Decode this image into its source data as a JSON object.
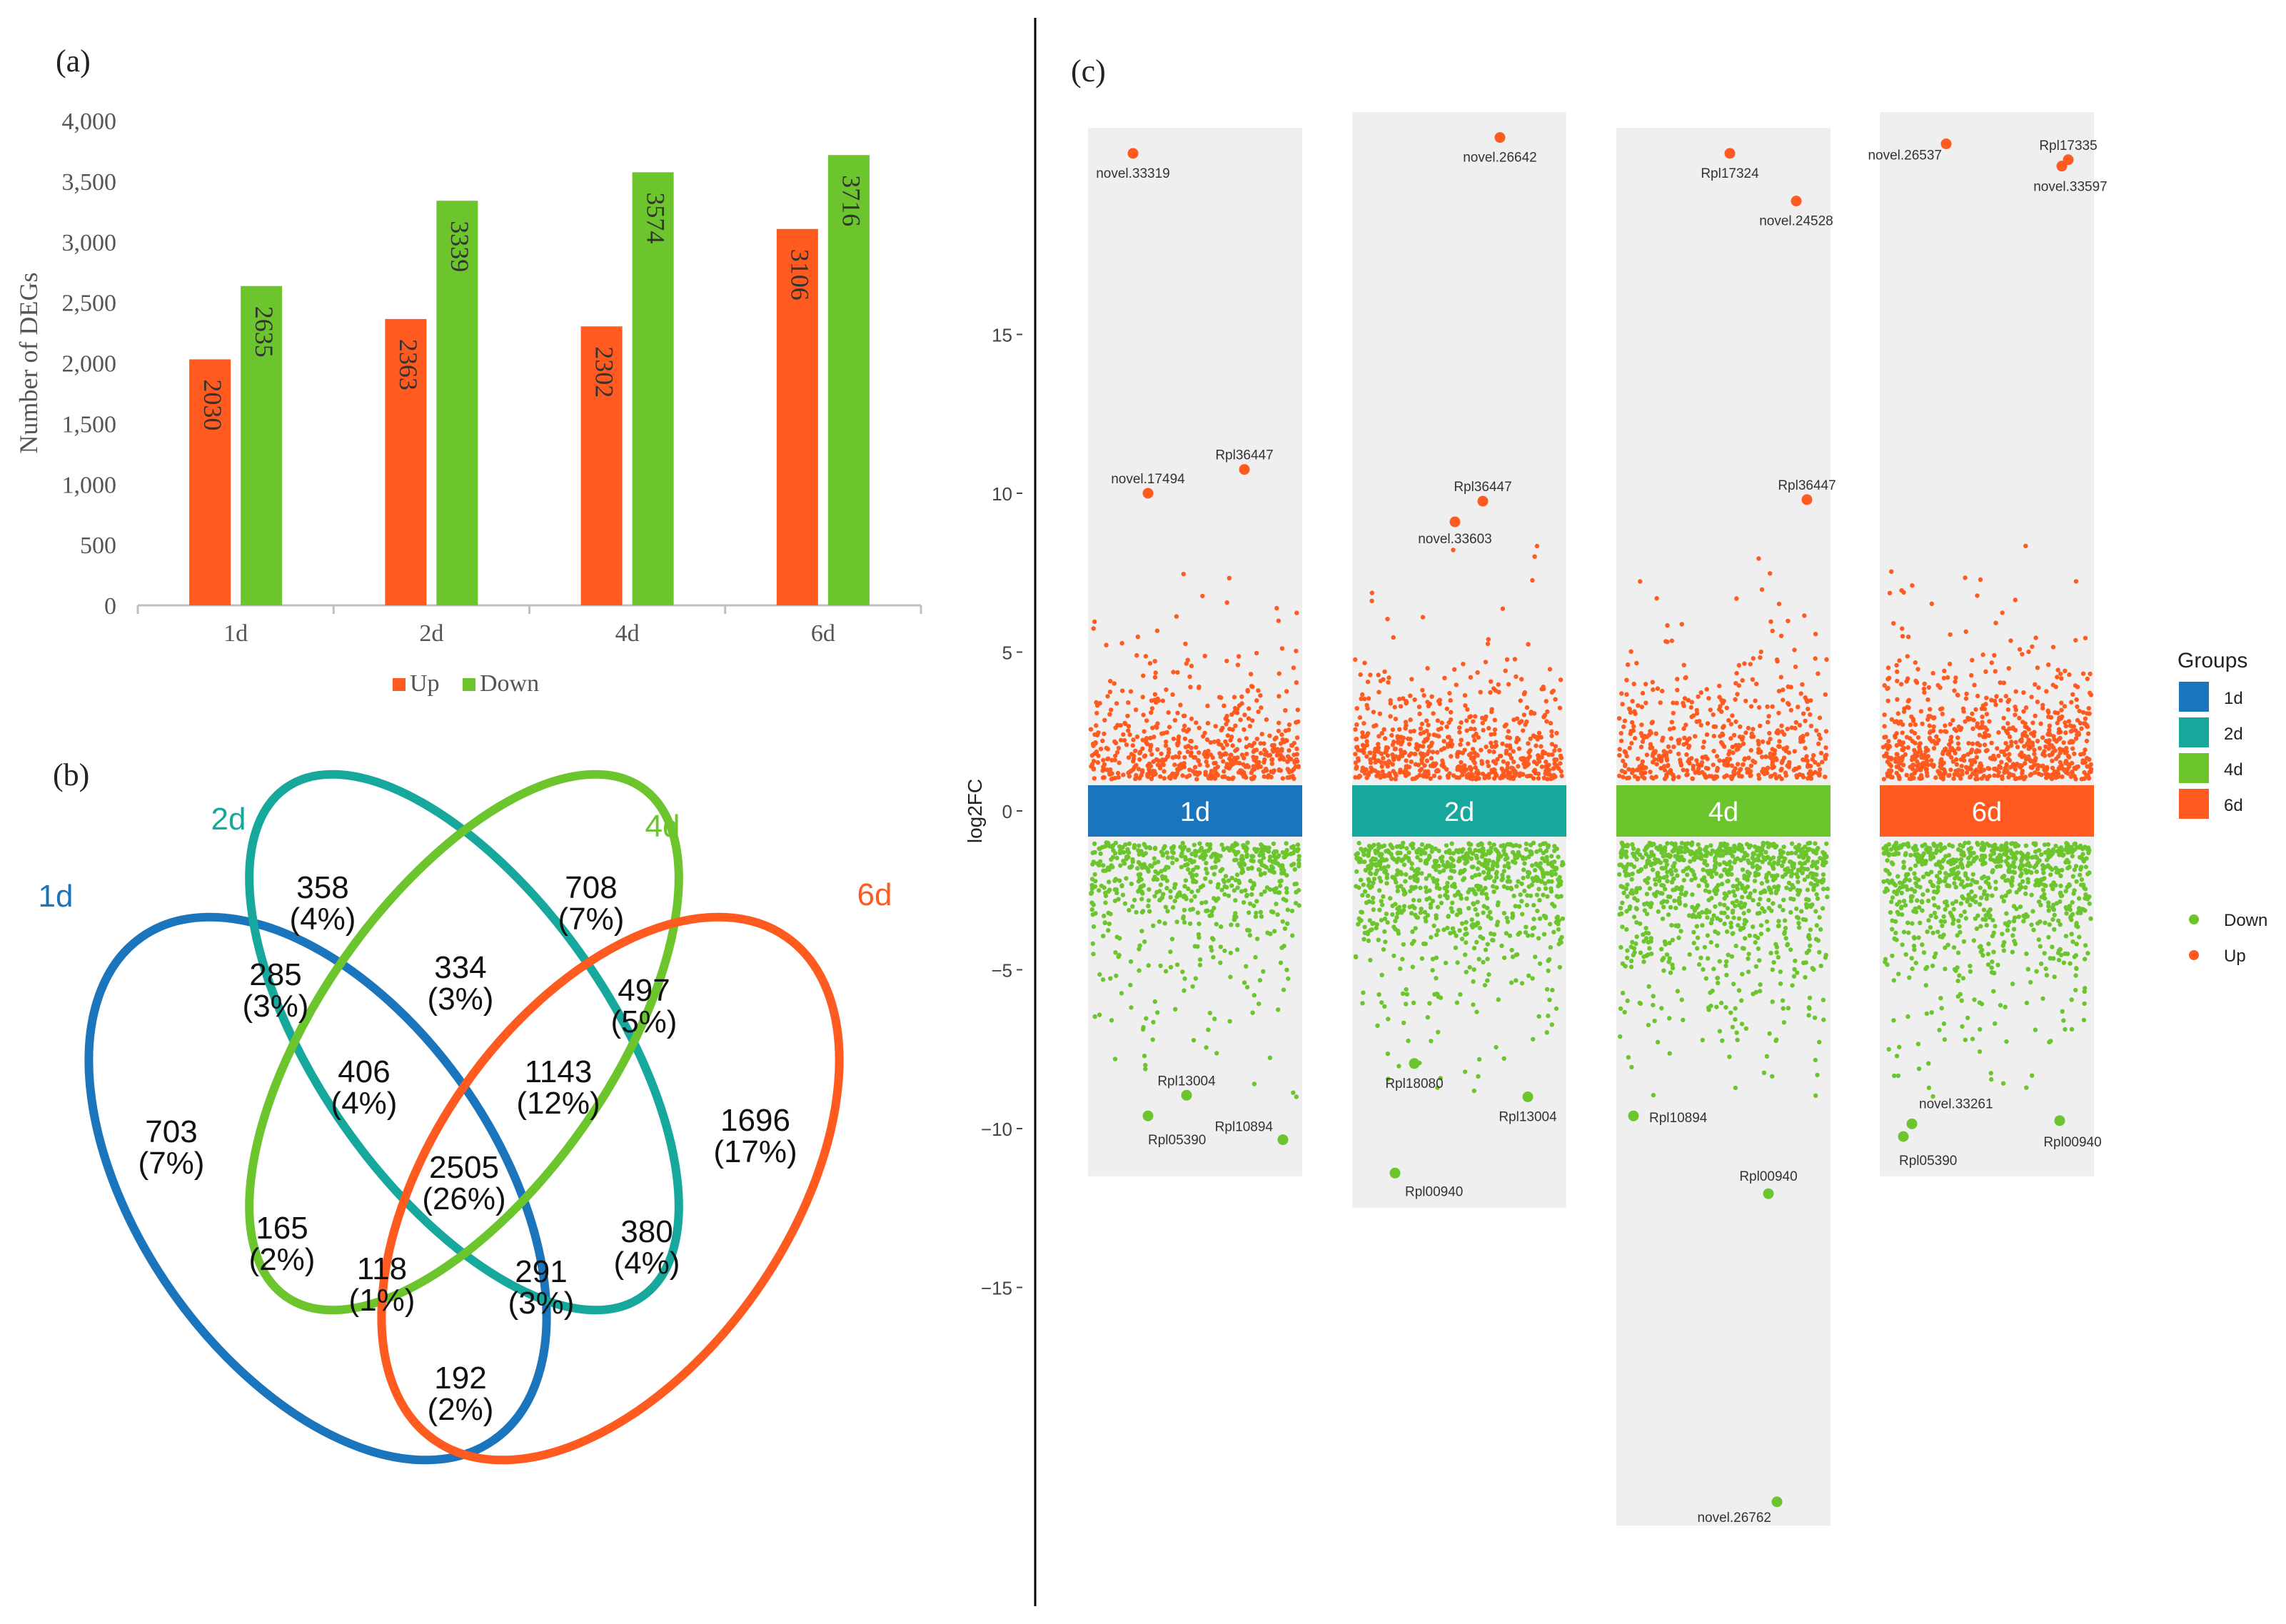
{
  "panels": {
    "a": {
      "label": "(a)"
    },
    "b": {
      "label": "(b)"
    },
    "c": {
      "label": "(c)"
    }
  },
  "chart_data": [
    {
      "type": "bar",
      "panel": "(a)",
      "categories": [
        "1d",
        "2d",
        "4d",
        "6d"
      ],
      "series": [
        {
          "name": "Up",
          "values": [
            2030,
            2363,
            2302,
            3106
          ],
          "color": "#FF5A1F"
        },
        {
          "name": "Down",
          "values": [
            2635,
            3339,
            3574,
            3716
          ],
          "color": "#6CC52D"
        }
      ],
      "ylabel": "Number of DEGs",
      "ylim": [
        0,
        4000
      ],
      "yticks": [
        0,
        500,
        1000,
        1500,
        2000,
        2500,
        3000,
        3500,
        4000
      ],
      "ytick_labels": [
        "0",
        "500",
        "1,000",
        "1,500",
        "2,000",
        "2,500",
        "3,000",
        "3,500",
        "4,000"
      ],
      "legend": {
        "position": "bottom",
        "entries": [
          "Up",
          "Down"
        ]
      }
    },
    {
      "type": "venn",
      "panel": "(b)",
      "sets": [
        {
          "name": "1d",
          "color": "#1A75BC"
        },
        {
          "name": "2d",
          "color": "#16A89D"
        },
        {
          "name": "4d",
          "color": "#6CC52D"
        },
        {
          "name": "6d",
          "color": "#FF5A1F"
        }
      ],
      "regions": [
        {
          "sets": [
            "1d"
          ],
          "count": "703",
          "percent": "(7%)"
        },
        {
          "sets": [
            "2d"
          ],
          "count": "358",
          "percent": "(4%)"
        },
        {
          "sets": [
            "4d"
          ],
          "count": "708",
          "percent": "(7%)"
        },
        {
          "sets": [
            "6d"
          ],
          "count": "1696",
          "percent": "(17%)"
        },
        {
          "sets": [
            "1d",
            "2d"
          ],
          "count": "285",
          "percent": "(3%)"
        },
        {
          "sets": [
            "2d",
            "4d"
          ],
          "count": "334",
          "percent": "(3%)"
        },
        {
          "sets": [
            "4d",
            "6d"
          ],
          "count": "497",
          "percent": "(5%)"
        },
        {
          "sets": [
            "1d",
            "2d",
            "4d"
          ],
          "count": "406",
          "percent": "(4%)"
        },
        {
          "sets": [
            "2d",
            "4d",
            "6d"
          ],
          "count": "1143",
          "percent": "(12%)"
        },
        {
          "sets": [
            "1d",
            "2d",
            "4d",
            "6d"
          ],
          "count": "2505",
          "percent": "(26%)"
        },
        {
          "sets": [
            "1d",
            "4d"
          ],
          "count": "165",
          "percent": "(2%)"
        },
        {
          "sets": [
            "2d",
            "6d"
          ],
          "count": "380",
          "percent": "(4%)"
        },
        {
          "sets": [
            "1d",
            "4d",
            "6d"
          ],
          "count": "118",
          "percent": "(1%)"
        },
        {
          "sets": [
            "1d",
            "2d",
            "6d"
          ],
          "count": "291",
          "percent": "(3%)"
        },
        {
          "sets": [
            "1d",
            "6d"
          ],
          "count": "192",
          "percent": "(2%)"
        }
      ]
    },
    {
      "type": "scatter",
      "panel": "(c)",
      "ylabel": "log2FC",
      "ylim": [
        -22,
        21
      ],
      "yticks": [
        -15,
        -10,
        -5,
        0,
        5,
        10,
        15
      ],
      "ytick_labels": [
        "−15",
        "−10",
        "−5",
        "0",
        "5",
        "10",
        "15"
      ],
      "groups_legend": {
        "title": "Groups",
        "entries": [
          {
            "name": "1d",
            "color": "#1A75BC"
          },
          {
            "name": "2d",
            "color": "#16A89D"
          },
          {
            "name": "4d",
            "color": "#6CC52D"
          },
          {
            "name": "6d",
            "color": "#FF5A1F"
          }
        ]
      },
      "points_legend": {
        "entries": [
          {
            "name": "Down",
            "color": "#6CC52D"
          },
          {
            "name": "Up",
            "color": "#FF5A1F"
          }
        ]
      },
      "group_ranges": [
        {
          "group": "1d",
          "ymin": -11.5,
          "ymax": 21.5
        },
        {
          "group": "2d",
          "ymin": -12.5,
          "ymax": 22.0
        },
        {
          "group": "4d",
          "ymin": -22.5,
          "ymax": 21.5
        },
        {
          "group": "6d",
          "ymin": -11.5,
          "ymax": 22.0
        }
      ],
      "highlighted": [
        {
          "group": "1d",
          "label": "novel.33319",
          "y": 20.7,
          "dir": "Up",
          "dx": 0.21
        },
        {
          "group": "1d",
          "label": "novel.17494",
          "y": 10.0,
          "dir": "Up",
          "dx": 0.28
        },
        {
          "group": "1d",
          "label": "Rpl36447",
          "y": 10.75,
          "dir": "Up",
          "dx": 0.73
        },
        {
          "group": "1d",
          "label": "Rpl13004",
          "y": -8.95,
          "dir": "Down",
          "dx": 0.46
        },
        {
          "group": "1d",
          "label": "Rpl05390",
          "y": -9.6,
          "dir": "Down",
          "dx": 0.28
        },
        {
          "group": "1d",
          "label": "Rpl10894",
          "y": -10.35,
          "dir": "Down",
          "dx": 0.91
        },
        {
          "group": "2d",
          "label": "novel.26642",
          "y": 21.2,
          "dir": "Up",
          "dx": 0.69
        },
        {
          "group": "2d",
          "label": "Rpl36447",
          "y": 9.75,
          "dir": "Up",
          "dx": 0.61
        },
        {
          "group": "2d",
          "label": "novel.33603",
          "y": 9.1,
          "dir": "Up",
          "dx": 0.48
        },
        {
          "group": "2d",
          "label": "Rpl18080",
          "y": -7.95,
          "dir": "Down",
          "dx": 0.29
        },
        {
          "group": "2d",
          "label": "Rpl13004",
          "y": -9.0,
          "dir": "Down",
          "dx": 0.82
        },
        {
          "group": "2d",
          "label": "Rpl00940",
          "y": -11.4,
          "dir": "Down",
          "dx": 0.2
        },
        {
          "group": "4d",
          "label": "Rpl17324",
          "y": 20.7,
          "dir": "Up",
          "dx": 0.53
        },
        {
          "group": "4d",
          "label": "novel.24528",
          "y": 19.2,
          "dir": "Up",
          "dx": 0.84
        },
        {
          "group": "4d",
          "label": "Rpl36447",
          "y": 9.8,
          "dir": "Up",
          "dx": 0.89
        },
        {
          "group": "4d",
          "label": "Rpl10894",
          "y": -9.6,
          "dir": "Down",
          "dx": 0.08
        },
        {
          "group": "4d",
          "label": "Rpl00940",
          "y": -12.05,
          "dir": "Down",
          "dx": 0.71
        },
        {
          "group": "4d",
          "label": "novel.26762",
          "y": -21.75,
          "dir": "Down",
          "dx": 0.75
        },
        {
          "group": "6d",
          "label": "novel.26537",
          "y": 21.0,
          "dir": "Up",
          "dx": 0.31
        },
        {
          "group": "6d",
          "label": "Rpl17335",
          "y": 20.5,
          "dir": "Up",
          "dx": 0.88
        },
        {
          "group": "6d",
          "label": "novel.33597",
          "y": 20.3,
          "dir": "Up",
          "dx": 0.85
        },
        {
          "group": "6d",
          "label": "novel.33261",
          "y": -9.85,
          "dir": "Down",
          "dx": 0.15
        },
        {
          "group": "6d",
          "label": "Rpl05390",
          "y": -10.25,
          "dir": "Down",
          "dx": 0.11
        },
        {
          "group": "6d",
          "label": "Rpl00940",
          "y": -9.75,
          "dir": "Down",
          "dx": 0.84
        }
      ]
    }
  ]
}
